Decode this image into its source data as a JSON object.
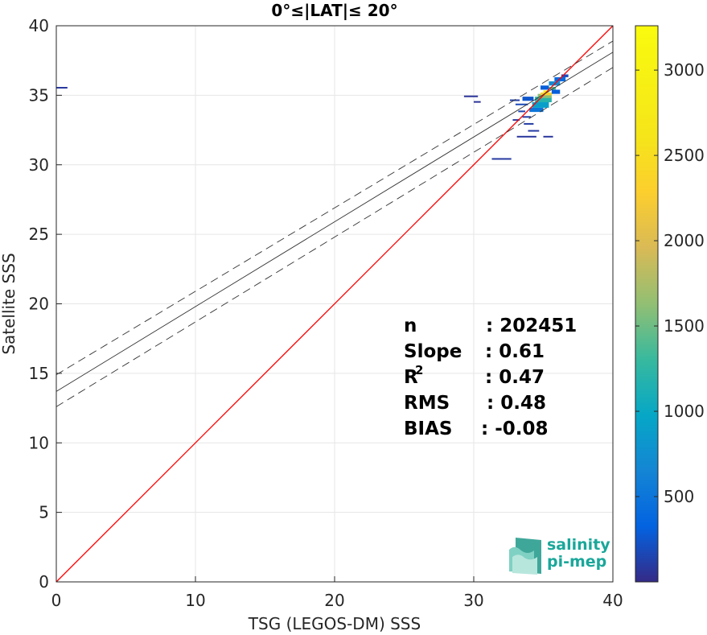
{
  "chart_data": {
    "type": "heatmap",
    "title": "0°≤|LAT|≤ 20°",
    "xlabel": "TSG (LEGOS-DM) SSS",
    "ylabel": "Satellite SSS",
    "xlim": [
      0,
      40
    ],
    "ylim": [
      0,
      40
    ],
    "xticks": [
      "0",
      "10",
      "20",
      "30",
      "40"
    ],
    "yticks": [
      "0",
      "5",
      "10",
      "15",
      "20",
      "25",
      "30",
      "35",
      "40"
    ],
    "grid": true,
    "colorbar": {
      "range": [
        0,
        3260
      ],
      "ticks": [
        "500",
        "1000",
        "1500",
        "2000",
        "2500",
        "3000"
      ],
      "tick_values": [
        500,
        1000,
        1500,
        2000,
        2500,
        3000
      ],
      "colormap": "parula"
    },
    "lines": [
      {
        "kind": "identity",
        "color": "#ff0000",
        "intercept": 0,
        "slope": 1
      },
      {
        "kind": "regression",
        "color": "#333333",
        "intercept": 13.7,
        "slope": 0.61
      },
      {
        "kind": "regression-upper",
        "color": "#333333",
        "dash": true,
        "intercept": 14.9,
        "slope": 0.6
      },
      {
        "kind": "regression-lower",
        "color": "#333333",
        "dash": true,
        "intercept": 12.6,
        "slope": 0.61
      }
    ],
    "density_cells": [
      {
        "x": 0.0,
        "y": 35.5,
        "w": 0.8,
        "h": 0.1,
        "c": 80
      },
      {
        "x": 29.3,
        "y": 34.9,
        "w": 1.0,
        "h": 0.08,
        "c": 60
      },
      {
        "x": 30.0,
        "y": 34.5,
        "w": 0.5,
        "h": 0.08,
        "c": 60
      },
      {
        "x": 32.6,
        "y": 34.6,
        "w": 0.7,
        "h": 0.1,
        "c": 120
      },
      {
        "x": 33.0,
        "y": 34.3,
        "w": 0.9,
        "h": 0.1,
        "c": 180
      },
      {
        "x": 33.2,
        "y": 33.8,
        "w": 0.5,
        "h": 0.1,
        "c": 150
      },
      {
        "x": 33.5,
        "y": 33.4,
        "w": 0.6,
        "h": 0.1,
        "c": 120
      },
      {
        "x": 32.8,
        "y": 33.2,
        "w": 0.5,
        "h": 0.08,
        "c": 80
      },
      {
        "x": 33.6,
        "y": 32.9,
        "w": 0.7,
        "h": 0.1,
        "c": 110
      },
      {
        "x": 33.9,
        "y": 32.4,
        "w": 0.8,
        "h": 0.1,
        "c": 100
      },
      {
        "x": 33.1,
        "y": 32.0,
        "w": 1.4,
        "h": 0.08,
        "c": 80
      },
      {
        "x": 35.0,
        "y": 32.0,
        "w": 0.7,
        "h": 0.08,
        "c": 80
      },
      {
        "x": 31.3,
        "y": 30.4,
        "w": 1.4,
        "h": 0.08,
        "c": 90
      },
      {
        "x": 34.0,
        "y": 33.8,
        "w": 1.0,
        "h": 0.3,
        "c": 500
      },
      {
        "x": 34.2,
        "y": 34.1,
        "w": 1.2,
        "h": 0.4,
        "c": 900
      },
      {
        "x": 34.4,
        "y": 34.5,
        "w": 1.2,
        "h": 0.4,
        "c": 1200
      },
      {
        "x": 34.6,
        "y": 34.8,
        "w": 1.0,
        "h": 0.3,
        "c": 1600
      },
      {
        "x": 34.8,
        "y": 35.0,
        "w": 0.8,
        "h": 0.2,
        "c": 2300
      },
      {
        "x": 35.0,
        "y": 35.2,
        "w": 0.4,
        "h": 0.15,
        "c": 2900
      },
      {
        "x": 35.4,
        "y": 35.4,
        "w": 0.5,
        "h": 0.2,
        "c": 1400
      },
      {
        "x": 35.4,
        "y": 35.7,
        "w": 0.8,
        "h": 0.3,
        "c": 700
      },
      {
        "x": 35.8,
        "y": 36.0,
        "w": 0.8,
        "h": 0.3,
        "c": 400
      },
      {
        "x": 36.3,
        "y": 36.3,
        "w": 0.5,
        "h": 0.2,
        "c": 200
      },
      {
        "x": 34.8,
        "y": 35.4,
        "w": 0.6,
        "h": 0.3,
        "c": 300
      },
      {
        "x": 35.6,
        "y": 35.1,
        "w": 0.6,
        "h": 0.3,
        "c": 300
      },
      {
        "x": 33.5,
        "y": 34.6,
        "w": 0.8,
        "h": 0.3,
        "c": 250
      }
    ],
    "stats": [
      {
        "label": "n",
        "value": ": 202451"
      },
      {
        "label": "Slope",
        "value": ": 0.61"
      },
      {
        "label": "R",
        "sup": "2",
        "value": ": 0.47"
      },
      {
        "label": "RMS",
        "value": ": 0.48"
      },
      {
        "label": "BIAS",
        "value": ": -0.08"
      }
    ]
  },
  "logo": {
    "line1": "salinity",
    "line2": "pi-mep",
    "color": "#1aa79a"
  }
}
